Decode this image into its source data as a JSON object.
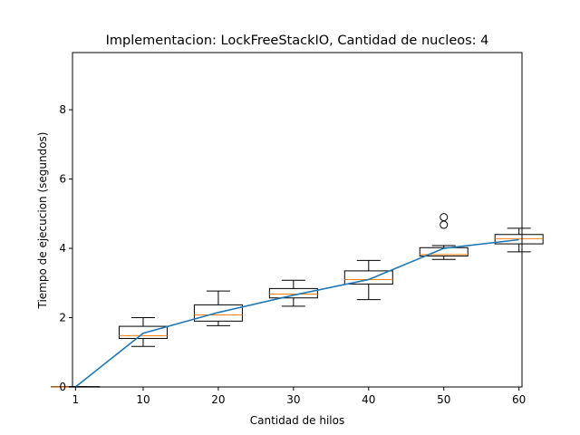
{
  "chart_data": {
    "type": "box",
    "title": "Implementacion: LockFreeStackIO, Cantidad de nucleos: 4",
    "xlabel": "Cantidad de hilos",
    "ylabel": "Tiempo de ejecucion (segundos)",
    "xlim": [
      0.6,
      60.4
    ],
    "ylim": [
      0,
      9.65
    ],
    "xticks": [
      1,
      10,
      20,
      30,
      40,
      50,
      60
    ],
    "yticks": [
      0,
      2,
      4,
      6,
      8
    ],
    "grid": false,
    "legend": "none",
    "colors": {
      "box": "#000000",
      "median": "#ff7f0e",
      "mean_line": "#1f77b4"
    },
    "boxes": [
      {
        "x": 1,
        "whislo": 0.0,
        "q1": 0.0,
        "med": 0.0,
        "q3": 0.01,
        "whishi": 0.01,
        "fliers": []
      },
      {
        "x": 10,
        "whislo": 1.17,
        "q1": 1.4,
        "med": 1.48,
        "q3": 1.75,
        "whishi": 2.0,
        "fliers": []
      },
      {
        "x": 20,
        "whislo": 1.77,
        "q1": 1.9,
        "med": 2.08,
        "q3": 2.37,
        "whishi": 2.77,
        "fliers": []
      },
      {
        "x": 30,
        "whislo": 2.33,
        "q1": 2.57,
        "med": 2.68,
        "q3": 2.84,
        "whishi": 3.08,
        "fliers": []
      },
      {
        "x": 40,
        "whislo": 2.52,
        "q1": 2.97,
        "med": 3.1,
        "q3": 3.35,
        "whishi": 3.65,
        "fliers": []
      },
      {
        "x": 50,
        "whislo": 3.68,
        "q1": 3.78,
        "med": 3.82,
        "q3": 4.02,
        "whishi": 4.08,
        "fliers": [
          4.68,
          4.9
        ]
      },
      {
        "x": 60,
        "whislo": 3.9,
        "q1": 4.13,
        "med": 4.28,
        "q3": 4.4,
        "whishi": 4.58,
        "fliers": []
      }
    ],
    "line": {
      "x": [
        1,
        10,
        20,
        30,
        40,
        50,
        60
      ],
      "y": [
        0.0,
        1.55,
        2.15,
        2.65,
        3.1,
        4.0,
        4.25
      ]
    }
  }
}
